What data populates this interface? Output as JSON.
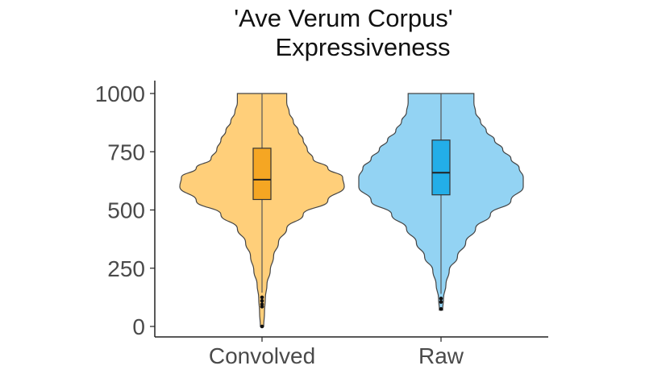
{
  "chart_data": {
    "type": "violin",
    "title_lines": [
      "'Ave Verum Corpus'",
      "Expressiveness"
    ],
    "xlabel": "",
    "ylabel": "",
    "categories": [
      "Convolved",
      "Raw"
    ],
    "ylim": [
      0,
      1000
    ],
    "yticks": [
      0,
      250,
      500,
      750,
      1000
    ],
    "grid": false,
    "legend": "none",
    "colors": {
      "Convolved": {
        "fill": "#FFCF7A",
        "box": "#F5A623"
      },
      "Raw": {
        "fill": "#93D3F3",
        "box": "#23AEE8"
      },
      "outline": "#444444"
    },
    "series": [
      {
        "category": "Convolved",
        "box": {
          "q1": 545,
          "median": 630,
          "q3": 765,
          "whisker_low": 145,
          "whisker_high": 1000
        },
        "outliers": [
          125,
          110,
          95,
          85,
          0
        ],
        "violin_density": [
          [
            0,
            0.02
          ],
          [
            60,
            0.03
          ],
          [
            120,
            0.04
          ],
          [
            180,
            0.06
          ],
          [
            240,
            0.1
          ],
          [
            300,
            0.14
          ],
          [
            360,
            0.2
          ],
          [
            420,
            0.3
          ],
          [
            480,
            0.5
          ],
          [
            540,
            0.8
          ],
          [
            600,
            1.0
          ],
          [
            640,
            0.98
          ],
          [
            680,
            0.8
          ],
          [
            720,
            0.62
          ],
          [
            760,
            0.55
          ],
          [
            800,
            0.5
          ],
          [
            840,
            0.44
          ],
          [
            880,
            0.38
          ],
          [
            920,
            0.33
          ],
          [
            960,
            0.3
          ],
          [
            1000,
            0.3
          ]
        ]
      },
      {
        "category": "Raw",
        "box": {
          "q1": 565,
          "median": 660,
          "q3": 800,
          "whisker_low": 140,
          "whisker_high": 1000
        },
        "outliers": [
          120,
          105,
          75
        ],
        "violin_density": [
          [
            70,
            0.02
          ],
          [
            120,
            0.03
          ],
          [
            180,
            0.06
          ],
          [
            240,
            0.1
          ],
          [
            300,
            0.2
          ],
          [
            360,
            0.3
          ],
          [
            420,
            0.42
          ],
          [
            480,
            0.6
          ],
          [
            540,
            0.85
          ],
          [
            600,
            1.0
          ],
          [
            640,
            1.0
          ],
          [
            680,
            0.95
          ],
          [
            720,
            0.85
          ],
          [
            760,
            0.75
          ],
          [
            800,
            0.65
          ],
          [
            840,
            0.55
          ],
          [
            880,
            0.48
          ],
          [
            920,
            0.42
          ],
          [
            960,
            0.4
          ],
          [
            1000,
            0.4
          ]
        ]
      }
    ]
  }
}
